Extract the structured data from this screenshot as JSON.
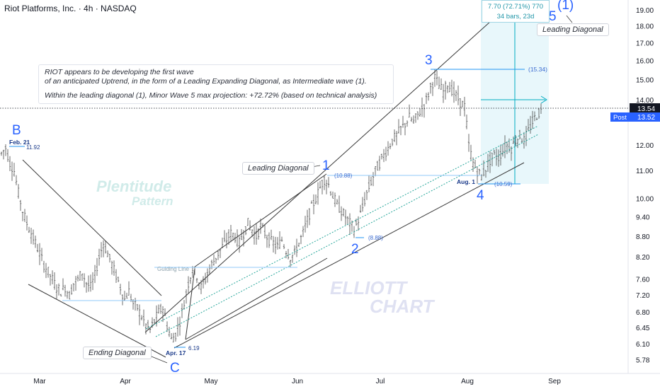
{
  "header": {
    "title": "Riot Platforms, Inc. · 4h · NASDAQ"
  },
  "annotation": {
    "line1": "RIOT appears to be developing the first wave",
    "line2": "of an anticipated Uptrend, in the form of a Leading Expanding Diagonal, as Intermediate wave (1).",
    "line3": "Within the leading diagonal (1), Minor Wave 5 max projection: +72.72% (based on technical analysis)"
  },
  "labels": {
    "leading_diagonal_mid": "Leading Diagonal",
    "leading_diagonal_top": "Leading Diagonal",
    "ending_diagonal": "Ending Diagonal",
    "watermark1a": "Plentitude",
    "watermark1b": "Pattern",
    "watermark2a": "ELLIOTT",
    "watermark2b": "CHART",
    "guiding_line": "Guiding Line"
  },
  "measure": {
    "line1": "7.70 (72.71%) 770",
    "line2": "34 bars, 23d"
  },
  "waves": {
    "B": "B",
    "C": "C",
    "w1": "1",
    "w2": "2",
    "w3": "3",
    "w4": "4",
    "w5": "5",
    "w_int1": "(1)"
  },
  "point_labels": {
    "feb21": "Feb. 21",
    "feb21_val": "11.92",
    "apr17": "Apr. 17",
    "apr17_val": "6.19",
    "aug1": "Aug. 1",
    "aug1_val": "(10.59)",
    "w1_val": "(10.88)",
    "w2_val": "(8.88)",
    "w3_val": "(15.34)"
  },
  "colors": {
    "wave_blue": "#2962ff",
    "teal": "#26a69a",
    "cyan": "#00bcd4",
    "zone": "#e0f4fa",
    "candle": "#4a4a4a",
    "line": "#3a3a3a",
    "current_price": "#131722",
    "post_badge": "#2962ff"
  },
  "price_badges": {
    "last": "13.54",
    "post_label": "Post",
    "post_value": "13.52"
  },
  "chart_data": {
    "type": "candlestick",
    "symbol": "RIOT",
    "interval": "4h",
    "exchange": "NASDAQ",
    "y_scale": "log",
    "ylim": [
      5.6,
      19.4
    ],
    "y_ticks": [
      19.0,
      18.0,
      17.0,
      16.0,
      15.0,
      14.0,
      12.0,
      11.0,
      10.0,
      9.4,
      8.8,
      8.2,
      7.6,
      7.2,
      6.8,
      6.45,
      6.1,
      5.78
    ],
    "y_tick_labels": [
      "19.00",
      "18.00",
      "17.00",
      "16.00",
      "15.00",
      "14.00",
      "12.00",
      "11.00",
      "10.00",
      "9.40",
      "8.80",
      "8.20",
      "7.60",
      "7.20",
      "6.80",
      "6.45",
      "6.10",
      "5.78"
    ],
    "x_ticks": [
      "Mar",
      "Apr",
      "May",
      "Jun",
      "Jul",
      "Aug",
      "Sep"
    ],
    "last_price": 13.54,
    "post_price": 13.52,
    "wave_points": [
      {
        "label": "B",
        "date": "Feb 21",
        "price": 11.92
      },
      {
        "label": "C",
        "date": "Apr 17",
        "price": 6.19
      },
      {
        "label": "1",
        "date": "Jun 1",
        "price": 10.88
      },
      {
        "label": "2",
        "date": "Jun 24",
        "price": 8.88
      },
      {
        "label": "3",
        "date": "Jul 19",
        "price": 15.34
      },
      {
        "label": "4",
        "date": "Aug 1",
        "price": 10.59
      },
      {
        "label": "5",
        "date": "Aug 27",
        "price": 18.3,
        "note": "max projection"
      }
    ],
    "projection": {
      "change": 7.7,
      "percent": 72.71,
      "ticks": 770,
      "bars": 34,
      "days": 23
    },
    "price_path": [
      [
        0,
        11.6
      ],
      [
        8,
        11.9
      ],
      [
        14,
        11.3
      ],
      [
        20,
        11.0
      ],
      [
        26,
        10.2
      ],
      [
        32,
        9.6
      ],
      [
        38,
        9.2
      ],
      [
        44,
        8.9
      ],
      [
        50,
        8.6
      ],
      [
        56,
        8.3
      ],
      [
        62,
        8.0
      ],
      [
        68,
        7.8
      ],
      [
        74,
        7.6
      ],
      [
        80,
        7.4
      ],
      [
        86,
        7.3
      ],
      [
        92,
        7.4
      ],
      [
        98,
        7.2
      ],
      [
        104,
        7.5
      ],
      [
        110,
        7.6
      ],
      [
        116,
        7.8
      ],
      [
        122,
        7.5
      ],
      [
        128,
        7.4
      ],
      [
        134,
        7.7
      ],
      [
        140,
        8.2
      ],
      [
        146,
        8.6
      ],
      [
        152,
        8.3
      ],
      [
        158,
        8.0
      ],
      [
        164,
        7.7
      ],
      [
        170,
        7.4
      ],
      [
        176,
        7.1
      ],
      [
        182,
        7.3
      ],
      [
        188,
        7.0
      ],
      [
        194,
        6.9
      ],
      [
        200,
        6.7
      ],
      [
        206,
        6.5
      ],
      [
        212,
        6.4
      ],
      [
        218,
        6.6
      ],
      [
        224,
        6.8
      ],
      [
        230,
        6.9
      ],
      [
        236,
        6.5
      ],
      [
        242,
        6.2
      ],
      [
        248,
        6.3
      ],
      [
        254,
        6.6
      ],
      [
        260,
        7.0
      ],
      [
        266,
        7.5
      ],
      [
        272,
        7.9
      ],
      [
        278,
        7.7
      ],
      [
        284,
        7.4
      ],
      [
        290,
        7.6
      ],
      [
        296,
        7.9
      ],
      [
        302,
        8.1
      ],
      [
        308,
        8.3
      ],
      [
        314,
        8.5
      ],
      [
        320,
        8.7
      ],
      [
        326,
        8.9
      ],
      [
        332,
        8.8
      ],
      [
        338,
        8.6
      ],
      [
        344,
        8.9
      ],
      [
        350,
        9.2
      ],
      [
        356,
        9.0
      ],
      [
        362,
        8.8
      ],
      [
        368,
        9.1
      ],
      [
        374,
        8.9
      ],
      [
        380,
        8.7
      ],
      [
        386,
        8.6
      ],
      [
        392,
        8.5
      ],
      [
        398,
        8.7
      ],
      [
        404,
        8.4
      ],
      [
        410,
        8.2
      ],
      [
        416,
        8.3
      ],
      [
        422,
        8.6
      ],
      [
        428,
        8.9
      ],
      [
        434,
        9.3
      ],
      [
        440,
        9.7
      ],
      [
        446,
        10.0
      ],
      [
        452,
        10.4
      ],
      [
        458,
        10.7
      ],
      [
        464,
        10.5
      ],
      [
        470,
        10.1
      ],
      [
        476,
        9.8
      ],
      [
        482,
        9.6
      ],
      [
        488,
        9.4
      ],
      [
        494,
        9.2
      ],
      [
        500,
        9.0
      ],
      [
        506,
        9.3
      ],
      [
        512,
        9.7
      ],
      [
        518,
        10.2
      ],
      [
        524,
        10.6
      ],
      [
        530,
        11.0
      ],
      [
        536,
        11.3
      ],
      [
        542,
        11.6
      ],
      [
        548,
        11.9
      ],
      [
        554,
        12.2
      ],
      [
        560,
        12.4
      ],
      [
        566,
        12.7
      ],
      [
        572,
        12.9
      ],
      [
        578,
        13.2
      ],
      [
        584,
        13.0
      ],
      [
        590,
        13.3
      ],
      [
        596,
        13.6
      ],
      [
        602,
        14.0
      ],
      [
        608,
        14.6
      ],
      [
        614,
        15.1
      ],
      [
        620,
        14.7
      ],
      [
        626,
        14.4
      ],
      [
        632,
        14.8
      ],
      [
        638,
        14.5
      ],
      [
        644,
        14.2
      ],
      [
        650,
        13.9
      ],
      [
        656,
        13.7
      ],
      [
        662,
        12.0
      ],
      [
        668,
        11.3
      ],
      [
        674,
        11.0
      ],
      [
        680,
        10.8
      ],
      [
        686,
        11.1
      ],
      [
        692,
        11.4
      ],
      [
        698,
        11.6
      ],
      [
        704,
        11.5
      ],
      [
        710,
        11.8
      ],
      [
        716,
        12.0
      ],
      [
        722,
        11.9
      ],
      [
        728,
        12.2
      ],
      [
        734,
        12.4
      ],
      [
        740,
        12.2
      ],
      [
        746,
        12.6
      ],
      [
        752,
        13.0
      ],
      [
        758,
        13.3
      ],
      [
        764,
        13.5
      ],
      [
        768,
        13.54
      ]
    ]
  }
}
